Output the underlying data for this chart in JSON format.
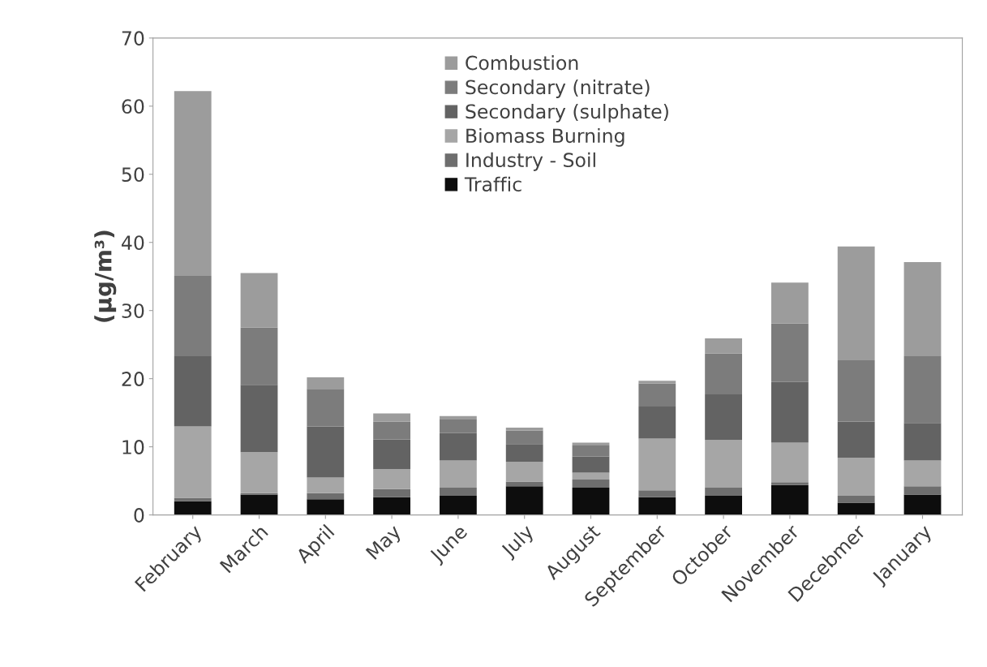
{
  "chart_data": {
    "type": "bar",
    "stacked": true,
    "ylabel": "(μg/m³)",
    "categories": [
      "February",
      "March",
      "April",
      "May",
      "June",
      "July",
      "August",
      "September",
      "October",
      "November",
      "Decebmer",
      "January"
    ],
    "series": [
      {
        "name": "Traffic",
        "color": "#0d0d0d",
        "values": [
          2.0,
          3.0,
          2.3,
          2.6,
          2.8,
          4.2,
          4.0,
          2.6,
          2.8,
          4.4,
          1.8,
          3.0
        ]
      },
      {
        "name": "Industry - Soil",
        "color": "#6e6e6e",
        "values": [
          0.5,
          0.2,
          0.9,
          1.2,
          1.2,
          0.7,
          1.2,
          1.0,
          1.2,
          0.4,
          1.0,
          1.2
        ]
      },
      {
        "name": "Biomass Burning",
        "color": "#a6a6a6",
        "values": [
          10.5,
          6.0,
          2.3,
          2.9,
          4.0,
          2.9,
          1.0,
          7.6,
          7.0,
          5.8,
          5.6,
          3.8
        ]
      },
      {
        "name": "Secondary (sulphate)",
        "color": "#636363",
        "values": [
          10.3,
          9.9,
          7.5,
          4.4,
          4.0,
          2.6,
          2.4,
          4.7,
          6.7,
          8.9,
          5.3,
          5.5
        ]
      },
      {
        "name": "Secondary (nitrate)",
        "color": "#7c7c7c",
        "values": [
          11.8,
          8.4,
          5.5,
          2.6,
          2.0,
          2.0,
          1.6,
          3.4,
          6.0,
          8.6,
          9.0,
          9.8
        ]
      },
      {
        "name": "Combustion",
        "color": "#9c9c9c",
        "values": [
          27.1,
          8.0,
          1.7,
          1.2,
          0.5,
          0.4,
          0.4,
          0.4,
          2.2,
          6.0,
          16.7,
          13.8
        ]
      }
    ],
    "ylim": [
      0,
      70
    ],
    "yticks": [
      0,
      10,
      20,
      30,
      40,
      50,
      60,
      70
    ],
    "grid": false,
    "legend": "top"
  }
}
